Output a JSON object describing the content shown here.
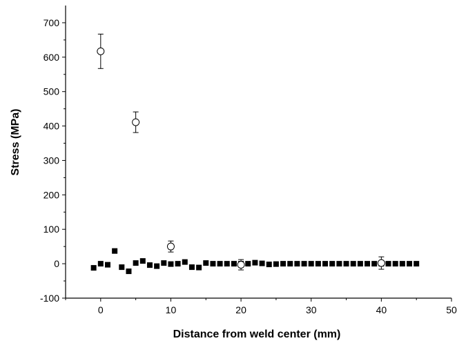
{
  "chart_data": {
    "type": "scatter",
    "title": "",
    "xlabel": "Distance from weld center (mm)",
    "ylabel": "Stress (MPa)",
    "xlim": [
      -5,
      50
    ],
    "ylim": [
      -100,
      750
    ],
    "xticks": [
      0,
      10,
      20,
      30,
      40,
      50
    ],
    "xtick_labels": [
      "0",
      "10",
      "20",
      "30",
      "40",
      "50"
    ],
    "yticks": [
      -100,
      0,
      100,
      200,
      300,
      400,
      500,
      600,
      700
    ],
    "ytick_labels": [
      "-100",
      "0",
      "100",
      "200",
      "300",
      "400",
      "500",
      "600",
      "700"
    ],
    "grid": false,
    "legend": "none",
    "series": [
      {
        "marker": "filled-square",
        "color": "#000000",
        "x": [
          -1,
          0,
          1,
          2,
          3,
          4,
          5,
          6,
          7,
          8,
          9,
          10,
          11,
          12,
          13,
          14,
          15,
          16,
          17,
          18,
          19,
          20,
          21,
          22,
          23,
          24,
          25,
          26,
          27,
          28,
          29,
          30,
          31,
          32,
          33,
          34,
          35,
          36,
          37,
          38,
          39,
          40,
          41,
          42,
          43,
          44,
          45
        ],
        "y": [
          -12,
          0,
          -3,
          37,
          -10,
          -22,
          2,
          8,
          -4,
          -7,
          2,
          -1,
          0,
          5,
          -10,
          -11,
          2,
          0,
          0,
          0,
          0,
          0,
          0,
          3,
          1,
          -2,
          -1,
          0,
          0,
          0,
          0,
          0,
          0,
          0,
          0,
          0,
          0,
          0,
          0,
          0,
          0,
          0,
          0,
          0,
          0,
          0,
          0
        ]
      },
      {
        "marker": "open-circle",
        "color": "#000000",
        "x": [
          0,
          5,
          10,
          20,
          40
        ],
        "y": [
          617,
          411,
          50,
          -3,
          2
        ],
        "error": [
          50,
          30,
          16,
          15,
          18
        ]
      }
    ]
  }
}
